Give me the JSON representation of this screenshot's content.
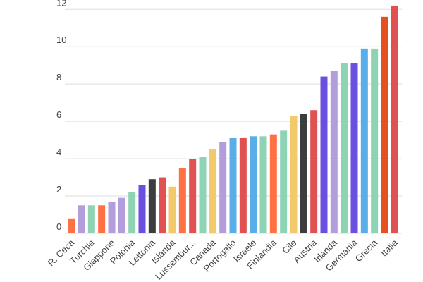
{
  "chart_data": {
    "type": "bar",
    "categories": [
      "R. Ceca",
      null,
      "Turchia",
      null,
      "Giappone",
      null,
      "Polonia",
      null,
      "Lettonia",
      null,
      "Islanda",
      null,
      "Lussembur...",
      null,
      "Canada",
      null,
      "Portogallo",
      null,
      "Israele",
      null,
      "Finlandia",
      null,
      "Cile",
      null,
      "Austria",
      null,
      "Irlanda",
      null,
      "Germania",
      null,
      "Grecia",
      null,
      "Italia"
    ],
    "values": [
      0.8,
      1.5,
      1.5,
      1.5,
      1.7,
      1.9,
      2.2,
      2.6,
      2.9,
      3.0,
      2.5,
      3.5,
      4.0,
      4.1,
      4.5,
      4.9,
      5.1,
      5.1,
      5.2,
      5.2,
      5.3,
      5.5,
      6.3,
      6.4,
      6.6,
      8.4,
      8.7,
      9.1,
      9.1,
      9.9,
      9.9,
      11.6,
      12.2
    ],
    "colors": [
      "#ff7043",
      "#b39ddb",
      "#8fd3b5",
      "#ff7043",
      "#b39ddb",
      "#b39ddb",
      "#8fd3b5",
      "#6a4fe0",
      "#3d3d3d",
      "#e05252",
      "#f2ca6b",
      "#ff7043",
      "#e05252",
      "#8fd3b5",
      "#f2ca6b",
      "#b39ddb",
      "#5aaee8",
      "#e05252",
      "#5aaee8",
      "#8fd3b5",
      "#ff7043",
      "#8fd3b5",
      "#f2ca6b",
      "#3d3d3d",
      "#e05252",
      "#6a4fe0",
      "#b39ddb",
      "#8fd3b5",
      "#6a4fe0",
      "#5aaee8",
      "#8fd3b5",
      "#e6501e",
      "#e05252"
    ],
    "ylim": [
      0,
      12.5
    ],
    "yticks": [
      0,
      2,
      4,
      6,
      8,
      10,
      12
    ],
    "grid": true
  }
}
